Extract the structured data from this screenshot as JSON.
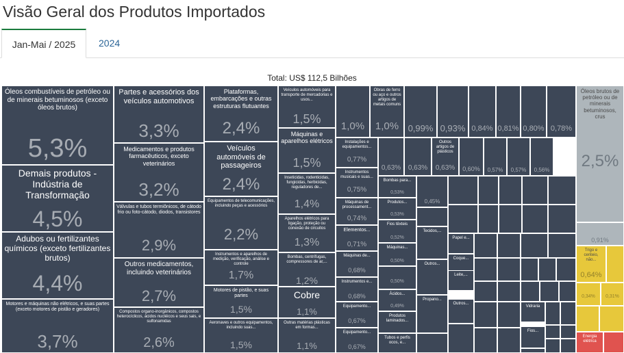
{
  "page": {
    "title": "Visão Geral dos Produtos Importados"
  },
  "tabs": [
    {
      "label": "Jan-Mai / 2025"
    },
    {
      "label": "2024"
    }
  ],
  "chart_data": {
    "type": "treemap",
    "title": "Total: US$ 112,5 Bilhões",
    "colors": {
      "dark": "#3d4757",
      "gray": "#aeb6bb",
      "yellow": "#e7c83b",
      "red": "#e0534f"
    },
    "items": [
      {
        "label": "Óleos combustíveis de petróleo ou de minerais betuminosos (exceto óleos brutos)",
        "value": "5,3%"
      },
      {
        "label": "Demais produtos - Indústria de Transformação",
        "value": "4,5%"
      },
      {
        "label": "Adubos ou fertilizantes químicos (exceto fertilizantes brutos)",
        "value": "4,4%"
      },
      {
        "label": "Motores e máquinas não elétricos, e suas partes (exceto motores de pistão e geradores)",
        "value": "3,7%"
      },
      {
        "label": "Partes e acessórios dos veículos automotivos",
        "value": "3,3%"
      },
      {
        "label": "Medicamentos e produtos farmacêuticos, exceto veterinários",
        "value": "3,2%"
      },
      {
        "label": "Válvulas e tubos termiônicos, de cátodo frio ou foto-cátodo, diodos, transistores",
        "value": "2,9%"
      },
      {
        "label": "Outros medicamentos, incluindo veterinários",
        "value": "2,7%"
      },
      {
        "label": "Compostos organo-inorgânicos, compostos heterocíclicos, ácidos nucléicos e seus sais, e sulfonamidas",
        "value": "2,6%"
      },
      {
        "label": "Plataformas, embarcações e outras estruturas flutuantes",
        "value": "2,4%"
      },
      {
        "label": "Veículos automóveis de passageiros",
        "value": "2,4%"
      },
      {
        "label": "Equipamentos de telecomunicações, incluindo peças e acessórios",
        "value": "2,2%"
      },
      {
        "label": "Instrumentos e aparelhos de medição, verificação, análise e controle",
        "value": "1,7%"
      },
      {
        "label": "Motores de pistão, e suas partes",
        "value": "1,5%"
      },
      {
        "label": "Aeronaves e outros equipamentos, incluindo suas...",
        "value": "1,5%"
      },
      {
        "label": "Veículos automóveis para transporte de mercadorias e usos...",
        "value": "1,5%"
      },
      {
        "label": "Máquinas e aparelhos elétricos",
        "value": "1,5%"
      },
      {
        "label": "Inseticidas, rodenticidas, fungicidas, herbicidas, reguladores de...",
        "value": "1,4%"
      },
      {
        "label": "Aparelhos elétricos para ligação, proteção ou conexão de circuitos",
        "value": "1,3%"
      },
      {
        "label": "Bombas, centrífugas, compressores de ar,...",
        "value": "1,2%"
      },
      {
        "label": "Cobre",
        "value": "1,1%"
      },
      {
        "label": "Outras matérias plásticas em formas...",
        "value": "1,1%"
      },
      {
        "label": "",
        "value": "1,0%"
      },
      {
        "label": "Obras de ferro ou aço e outros artigos de metais comuns",
        "value": "1,0%"
      },
      {
        "label": "",
        "value": "0,99%"
      },
      {
        "label": "",
        "value": "0,93%"
      },
      {
        "label": "",
        "value": "0,84%"
      },
      {
        "label": "",
        "value": "0,81%"
      },
      {
        "label": "",
        "value": "0,80%"
      },
      {
        "label": "",
        "value": "0,78%"
      },
      {
        "label": "Instalações e equipamentos...",
        "value": "0,77%"
      },
      {
        "label": "Instrumentos musicais e suas...",
        "value": "0,75%"
      },
      {
        "label": "Máquinas de processament...",
        "value": "0,74%"
      },
      {
        "label": "Elementos...",
        "value": "0,71%"
      },
      {
        "label": "Máquinas de...",
        "value": "0,68%"
      },
      {
        "label": "Instrumentos e...",
        "value": "0,68%"
      },
      {
        "label": "Equipamento...",
        "value": "0,67%"
      },
      {
        "label": "Equipamento...",
        "value": "0,67%"
      },
      {
        "label": "",
        "value": "0,63%"
      },
      {
        "label": "",
        "value": "0,63%"
      },
      {
        "label": "Outros artigos de plásticos",
        "value": "0,63%"
      },
      {
        "label": "",
        "value": "0,60%"
      },
      {
        "label": "",
        "value": "0,57%"
      },
      {
        "label": "",
        "value": "0,57%"
      },
      {
        "label": "",
        "value": "0,56%"
      },
      {
        "label": "Bombas para...",
        "value": "0,53%"
      },
      {
        "label": "Produtos...",
        "value": "0,53%"
      },
      {
        "label": "Fios têxteis",
        "value": "0,52%"
      },
      {
        "label": "Máquinas...",
        "value": "0,50%"
      },
      {
        "label": "",
        "value": "0,50%"
      },
      {
        "label": "Ácidos...",
        "value": "0,49%"
      },
      {
        "label": "Produtos laminados...",
        "value": ""
      },
      {
        "label": "Tubos e perfis ocos, e...",
        "value": ""
      },
      {
        "label": "",
        "value": "0,45%"
      },
      {
        "label": "Tecidos,...",
        "value": ""
      },
      {
        "label": "Outros...",
        "value": ""
      },
      {
        "label": "Propano...",
        "value": ""
      },
      {
        "label": "Papel e...",
        "value": ""
      },
      {
        "label": "Coque...",
        "value": ""
      },
      {
        "label": "Leite,...",
        "value": ""
      },
      {
        "label": "Outros...",
        "value": ""
      },
      {
        "label": "Vidraria",
        "value": ""
      },
      {
        "label": "Fios...",
        "value": ""
      },
      {
        "label": "Óleos brutos de petróleo ou de minerais betuminosos, crus",
        "value": "2,5%"
      },
      {
        "label": "",
        "value": "0,91%"
      },
      {
        "label": "Trigo e centeio, não...",
        "value": "0,64%"
      },
      {
        "label": "",
        "value": "0,34%"
      },
      {
        "label": "",
        "value": "0,31%"
      },
      {
        "label": "Energia elétrica",
        "value": ""
      }
    ]
  }
}
